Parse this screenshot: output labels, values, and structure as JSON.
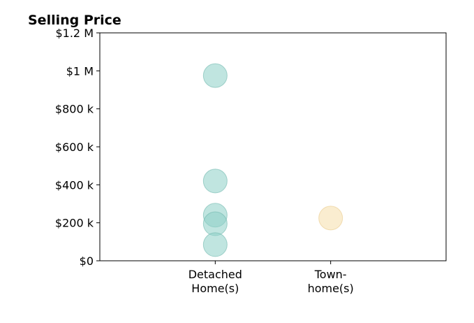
{
  "chart_data": {
    "type": "scatter",
    "title": "Selling Price",
    "xlabel": "",
    "ylabel": "",
    "categories": [
      [
        "Detached",
        "Home(s)"
      ],
      [
        "Town-",
        "home(s)"
      ]
    ],
    "x_range": [
      0,
      3
    ],
    "ylim": [
      0,
      1200000
    ],
    "y_ticks": [
      {
        "value": 0,
        "label": "$0"
      },
      {
        "value": 200000,
        "label": "$200 k"
      },
      {
        "value": 400000,
        "label": "$400 k"
      },
      {
        "value": 600000,
        "label": "$600 k"
      },
      {
        "value": 800000,
        "label": "$800 k"
      },
      {
        "value": 1000000,
        "label": "$1 M"
      },
      {
        "value": 1200000,
        "label": "$1.2 M"
      }
    ],
    "grid": false,
    "legend": "none",
    "series": [
      {
        "category_index": 0,
        "color": "#8ccfc6",
        "edge_color": "#6fb8ae",
        "values": [
          975000,
          420000,
          240000,
          195000,
          85000
        ]
      },
      {
        "category_index": 1,
        "color": "#f5deaa",
        "edge_color": "#e9c98a",
        "values": [
          225000
        ]
      }
    ]
  }
}
